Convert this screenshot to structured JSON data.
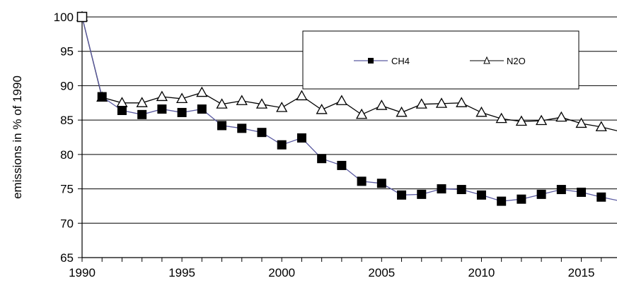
{
  "chart_data": {
    "type": "line",
    "title": "",
    "xlabel": "",
    "ylabel": "emissions in % of 1990",
    "xlim": [
      1990,
      2017
    ],
    "ylim": [
      65,
      100
    ],
    "x_ticks": [
      1990,
      1995,
      2000,
      2005,
      2010,
      2015
    ],
    "y_ticks": [
      65,
      70,
      75,
      80,
      85,
      90,
      95,
      100
    ],
    "grid": "horizontal",
    "legend_position": "top-right",
    "x": [
      1990,
      1991,
      1992,
      1993,
      1994,
      1995,
      1996,
      1997,
      1998,
      1999,
      2000,
      2001,
      2002,
      2003,
      2004,
      2005,
      2006,
      2007,
      2008,
      2009,
      2010,
      2011,
      2012,
      2013,
      2014,
      2015,
      2016,
      2017
    ],
    "series": [
      {
        "name": "CH4",
        "marker": "filled-square",
        "color": "#000000",
        "line_color": "#5a5aa0",
        "values": [
          100,
          88.4,
          86.4,
          85.8,
          86.6,
          86.1,
          86.6,
          84.2,
          83.8,
          83.2,
          81.4,
          82.4,
          79.4,
          78.4,
          76.1,
          75.8,
          74.1,
          74.2,
          75.0,
          74.9,
          74.1,
          73.2,
          73.5,
          74.2,
          74.9,
          74.5,
          73.8,
          73.2
        ]
      },
      {
        "name": "N2O",
        "marker": "open-triangle",
        "color": "#000000",
        "line_color": "#000000",
        "values": [
          100,
          88.3,
          87.5,
          87.5,
          88.4,
          88.1,
          89.0,
          87.3,
          87.8,
          87.3,
          86.8,
          88.5,
          86.5,
          87.8,
          85.8,
          87.1,
          86.1,
          87.3,
          87.4,
          87.5,
          86.1,
          85.2,
          84.8,
          84.9,
          85.4,
          84.5,
          84.0,
          83.3
        ]
      }
    ]
  }
}
